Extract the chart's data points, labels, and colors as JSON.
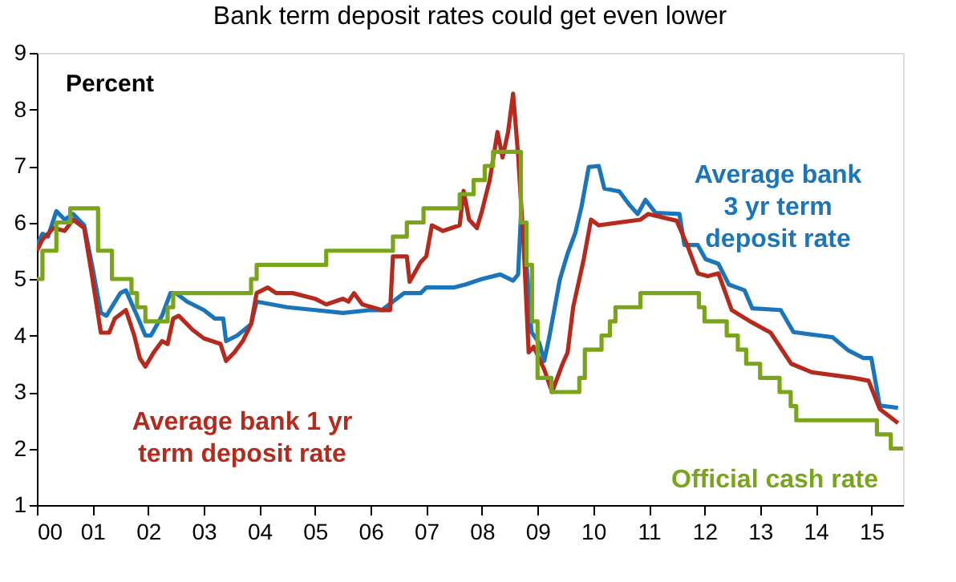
{
  "chart_data": {
    "type": "line",
    "title": "Bank term deposit rates could get even lower",
    "ylabel": "Percent",
    "xlim": [
      2000,
      2015.57
    ],
    "ylim": [
      1,
      9
    ],
    "yticks": [
      1,
      2,
      3,
      4,
      5,
      6,
      7,
      8,
      9
    ],
    "xticks": [
      {
        "value": 2000,
        "label": "00"
      },
      {
        "value": 2001,
        "label": "01"
      },
      {
        "value": 2002,
        "label": "02"
      },
      {
        "value": 2003,
        "label": "03"
      },
      {
        "value": 2004,
        "label": "04"
      },
      {
        "value": 2005,
        "label": "05"
      },
      {
        "value": 2006,
        "label": "06"
      },
      {
        "value": 2007,
        "label": "07"
      },
      {
        "value": 2008,
        "label": "08"
      },
      {
        "value": 2009,
        "label": "09"
      },
      {
        "value": 2010,
        "label": "10"
      },
      {
        "value": 2011,
        "label": "11"
      },
      {
        "value": 2012,
        "label": "12"
      },
      {
        "value": 2013,
        "label": "13"
      },
      {
        "value": 2014,
        "label": "14"
      },
      {
        "value": 2015,
        "label": "15"
      }
    ],
    "grid": false,
    "legend": false,
    "line_style": "solid",
    "marker": "none",
    "series": [
      {
        "name": "Average bank\n3 yr term\ndeposit rate",
        "color": "#1a75bb",
        "type": "line",
        "x": [
          2000,
          2000.1,
          2000.2,
          2000.35,
          2000.5,
          2000.65,
          2000.85,
          2001.0,
          2001.15,
          2001.25,
          2001.5,
          2001.6,
          2001.8,
          2001.95,
          2002.05,
          2002.25,
          2002.4,
          2002.5,
          2002.7,
          2003.0,
          2003.2,
          2003.35,
          2003.4,
          2003.6,
          2003.85,
          2003.95,
          2004.5,
          2005.0,
          2005.5,
          2006.0,
          2006.2,
          2006.4,
          2006.6,
          2006.9,
          2007.0,
          2007.5,
          2007.7,
          2008.0,
          2008.33,
          2008.56,
          2008.65,
          2008.7,
          2008.8,
          2008.89,
          2009.03,
          2009.12,
          2009.21,
          2009.4,
          2009.54,
          2009.68,
          2009.79,
          2009.92,
          2010.1,
          2010.2,
          2010.47,
          2010.66,
          2010.8,
          2010.94,
          2011.12,
          2011.55,
          2011.64,
          2011.88,
          2012.02,
          2012.25,
          2012.44,
          2012.72,
          2012.86,
          2013.37,
          2013.6,
          2014.3,
          2014.58,
          2014.86,
          2015.0,
          2015.15,
          2015.48
        ],
        "values": [
          5.6,
          5.8,
          5.75,
          6.2,
          6.05,
          6.15,
          5.95,
          5.2,
          4.4,
          4.35,
          4.75,
          4.8,
          4.35,
          4.0,
          4.0,
          4.35,
          4.75,
          4.75,
          4.6,
          4.45,
          4.3,
          4.3,
          3.9,
          4.0,
          4.2,
          4.6,
          4.5,
          4.45,
          4.4,
          4.45,
          4.45,
          4.6,
          4.75,
          4.75,
          4.85,
          4.85,
          4.9,
          5.0,
          5.08,
          4.97,
          5.08,
          6.1,
          5.27,
          4.06,
          3.87,
          3.55,
          3.97,
          4.99,
          5.45,
          5.82,
          6.28,
          6.98,
          7.0,
          6.6,
          6.55,
          6.3,
          6.15,
          6.4,
          6.17,
          6.15,
          5.6,
          5.6,
          5.35,
          5.27,
          4.9,
          4.8,
          4.48,
          4.45,
          4.06,
          3.97,
          3.74,
          3.6,
          3.6,
          2.76,
          2.72
        ]
      },
      {
        "name": "Average bank 1 yr\nterm deposit rate",
        "color": "#b52a1c",
        "type": "line",
        "x": [
          2000,
          2000.1,
          2000.3,
          2000.5,
          2000.65,
          2000.85,
          2001.0,
          2001.15,
          2001.3,
          2001.4,
          2001.6,
          2001.75,
          2001.85,
          2001.95,
          2002.1,
          2002.25,
          2002.35,
          2002.45,
          2002.55,
          2002.8,
          2003.0,
          2003.3,
          2003.4,
          2003.55,
          2003.7,
          2003.85,
          2003.95,
          2004.15,
          2004.3,
          2004.6,
          2005.0,
          2005.2,
          2005.5,
          2005.6,
          2005.7,
          2005.85,
          2006.2,
          2006.35,
          2006.4,
          2006.65,
          2006.7,
          2006.9,
          2007.0,
          2007.1,
          2007.3,
          2007.6,
          2007.67,
          2007.77,
          2007.91,
          2008.0,
          2008.14,
          2008.28,
          2008.37,
          2008.47,
          2008.56,
          2008.65,
          2008.75,
          2008.84,
          2008.93,
          2009.12,
          2009.26,
          2009.45,
          2009.54,
          2009.64,
          2009.83,
          2009.96,
          2010.1,
          2010.85,
          2010.99,
          2011.5,
          2011.69,
          2011.88,
          2012.06,
          2012.25,
          2012.49,
          2012.82,
          2013.19,
          2013.56,
          2013.93,
          2014.68,
          2014.95,
          2015.15,
          2015.48
        ],
        "values": [
          5.5,
          5.7,
          5.9,
          5.85,
          6.05,
          5.9,
          5.0,
          4.05,
          4.05,
          4.3,
          4.45,
          4.0,
          3.6,
          3.45,
          3.7,
          3.9,
          3.85,
          4.3,
          4.35,
          4.1,
          3.95,
          3.85,
          3.55,
          3.7,
          3.9,
          4.2,
          4.75,
          4.85,
          4.75,
          4.75,
          4.65,
          4.55,
          4.65,
          4.6,
          4.75,
          4.55,
          4.45,
          4.45,
          5.4,
          5.4,
          4.95,
          5.3,
          5.4,
          5.95,
          5.85,
          5.95,
          6.56,
          6.05,
          5.9,
          6.2,
          6.75,
          7.6,
          7.15,
          7.6,
          8.28,
          7.2,
          5.6,
          3.7,
          3.8,
          3.4,
          3.0,
          3.5,
          3.7,
          4.5,
          5.35,
          6.05,
          5.95,
          6.05,
          6.15,
          6.03,
          5.6,
          5.1,
          5.05,
          5.1,
          4.45,
          4.25,
          4.05,
          3.5,
          3.35,
          3.25,
          3.2,
          2.7,
          2.45
        ]
      },
      {
        "name": "Official cash rate",
        "color": "#7aa51b",
        "type": "step",
        "x": [
          2000,
          2000.1,
          2000.35,
          2000.6,
          2001.1,
          2001.35,
          2001.7,
          2001.8,
          2001.95,
          2002.35,
          2002.45,
          2003.85,
          2003.95,
          2005.2,
          2006.4,
          2006.65,
          2006.95,
          2007.6,
          2007.85,
          2008.05,
          2008.2,
          2008.7,
          2008.8,
          2008.9,
          2009.0,
          2009.25,
          2009.75,
          2009.85,
          2010.15,
          2010.3,
          2010.4,
          2010.85,
          2011.9,
          2012.0,
          2012.4,
          2012.6,
          2012.75,
          2013.0,
          2013.35,
          2013.55,
          2013.65,
          2015.1,
          2015.35,
          2015.57
        ],
        "values": [
          5.0,
          5.5,
          6.0,
          6.25,
          5.5,
          5.0,
          4.75,
          4.5,
          4.25,
          4.5,
          4.75,
          5.0,
          5.25,
          5.5,
          5.75,
          6.0,
          6.25,
          6.5,
          6.75,
          7.0,
          7.25,
          6.0,
          5.25,
          4.25,
          3.25,
          3.0,
          3.25,
          3.75,
          4.0,
          4.25,
          4.5,
          4.75,
          4.5,
          4.25,
          4.0,
          3.75,
          3.5,
          3.25,
          3.0,
          2.75,
          2.5,
          2.25,
          2.0,
          2.0
        ]
      }
    ]
  }
}
